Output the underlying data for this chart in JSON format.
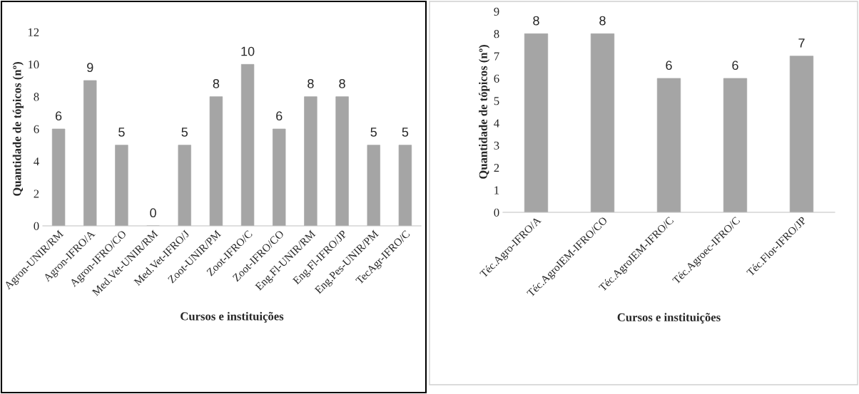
{
  "chart_data": [
    {
      "type": "bar",
      "categories": [
        "Agron-UNIR/RM",
        "Agron-IFRO/A",
        "Agron-IFRO/CO",
        "Med.Vet-UNIR/RM",
        "Med.Vet-IFRO/J",
        "Zoot-UNIR/PM",
        "Zoot-IFRO/C",
        "Zoot-IFRO/CO",
        "Eng.Fl-UNIR/RM",
        "Eng.Fl-IFRO/JP",
        "Eng.Pes-UNIR/PM",
        "TecAgr-IFRO/C"
      ],
      "values": [
        6,
        9,
        5,
        0,
        5,
        8,
        10,
        6,
        8,
        8,
        5,
        5
      ],
      "color": "#a5a5a5",
      "xlabel": "Cursos e instituições",
      "ylabel": "Quantidade de tópicos (nº)",
      "ylim": [
        0,
        12
      ],
      "yticks": [
        0,
        2,
        4,
        6,
        8,
        10,
        12
      ],
      "data_labels": true
    },
    {
      "type": "bar",
      "categories": [
        "Téc.Agro-IFRO/A",
        "Téc.AgroIEM-IFRO/CO",
        "Téc.AgroIEM-IFRO/C",
        "Téc.Agroec-IFRO/C",
        "Téc.Flor-IFRO/JP"
      ],
      "values": [
        8,
        8,
        6,
        6,
        7
      ],
      "color": "#a5a5a5",
      "xlabel": "Cursos e instituições",
      "ylabel": "Quantidade de tópicos (nº)",
      "ylim": [
        0,
        9
      ],
      "yticks": [
        0,
        1,
        2,
        3,
        4,
        5,
        6,
        7,
        8,
        9
      ],
      "data_labels": true
    }
  ]
}
